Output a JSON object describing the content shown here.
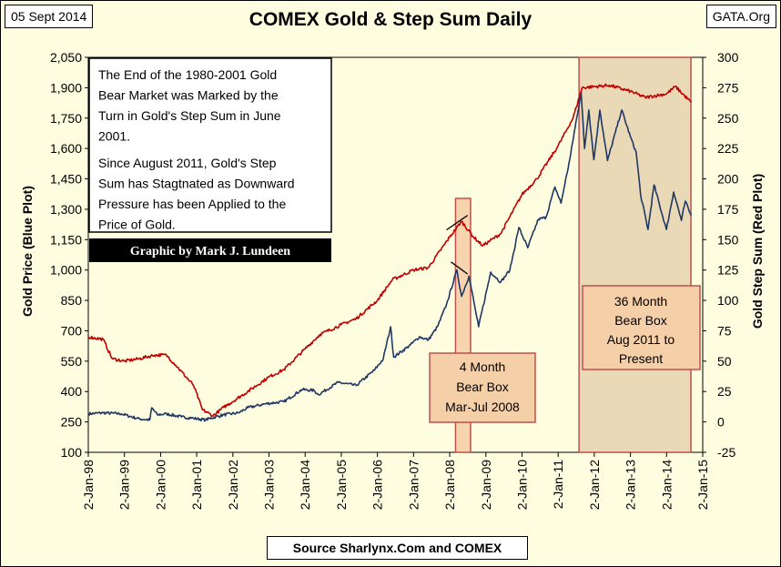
{
  "header": {
    "date": "05 Sept 2014",
    "title": "COMEX Gold & Step Sum Daily",
    "site": "GATA.Org"
  },
  "footer": {
    "source": "Source Sharlynx.Com and COMEX"
  },
  "annotations": {
    "note_paragraph_1": [
      "The End of the 1980-2001 Gold",
      "Bear Market  was Marked by the",
      "Turn in Gold's Step Sum in June",
      "2001."
    ],
    "note_paragraph_2": [
      "Since August 2011, Gold's Step",
      "Sum has Stagtnated as Downward",
      "Pressure has been Applied to the",
      "Price of Gold."
    ],
    "credit": "Graphic by Mark J. Lundeen",
    "box_2008": [
      "4 Month",
      "Bear Box",
      "Mar-Jul 2008"
    ],
    "box_2011": [
      "36 Month",
      "Bear Box",
      "Aug 2011 to",
      "Present"
    ]
  },
  "colors": {
    "gold_price": "#1f3864",
    "step_sum": "#c00000",
    "plot_bg": "#fffde0",
    "bear_box_fill": "#f5cfa8",
    "bear_box_shade": "#e3cca8",
    "bear_box_border": "#c0504d",
    "credit_bg": "#000000",
    "credit_text": "#ffffff"
  },
  "chart_data": {
    "type": "line",
    "title": "COMEX Gold & Step Sum Daily",
    "x_ticks": [
      "2-Jan-98",
      "2-Jan-99",
      "2-Jan-00",
      "2-Jan-01",
      "2-Jan-02",
      "2-Jan-03",
      "2-Jan-04",
      "2-Jan-05",
      "2-Jan-06",
      "2-Jan-07",
      "2-Jan-08",
      "2-Jan-09",
      "2-Jan-10",
      "2-Jan-11",
      "2-Jan-12",
      "2-Jan-13",
      "2-Jan-14",
      "2-Jan-15"
    ],
    "x_range": [
      "1998-01-02",
      "2015-01-02"
    ],
    "y_left": {
      "label": "Gold Price   (Blue Plot)",
      "range": [
        100,
        2050
      ],
      "ticks": [
        100,
        250,
        400,
        550,
        700,
        850,
        1000,
        1150,
        1300,
        1450,
        1600,
        1750,
        1900,
        2050
      ]
    },
    "y_right": {
      "label": "Gold Step Sum   (Red Plot)",
      "range": [
        -25,
        300
      ],
      "ticks": [
        -25,
        0,
        25,
        50,
        75,
        100,
        125,
        150,
        175,
        200,
        225,
        250,
        275,
        300
      ]
    },
    "grid": false,
    "series": [
      {
        "name": "Gold Price",
        "axis": "left",
        "points": [
          [
            "1998-01-02",
            290
          ],
          [
            "1998-06-01",
            295
          ],
          [
            "1998-12-01",
            290
          ],
          [
            "1999-06-01",
            265
          ],
          [
            "1999-09-15",
            260
          ],
          [
            "1999-10-05",
            320
          ],
          [
            "1999-12-01",
            285
          ],
          [
            "2000-03-01",
            290
          ],
          [
            "2000-08-01",
            275
          ],
          [
            "2000-12-01",
            268
          ],
          [
            "2001-04-01",
            260
          ],
          [
            "2001-06-01",
            270
          ],
          [
            "2001-10-01",
            285
          ],
          [
            "2002-03-01",
            295
          ],
          [
            "2002-06-01",
            320
          ],
          [
            "2002-12-01",
            340
          ],
          [
            "2003-03-01",
            345
          ],
          [
            "2003-06-01",
            350
          ],
          [
            "2003-12-01",
            410
          ],
          [
            "2004-04-01",
            405
          ],
          [
            "2004-05-15",
            385
          ],
          [
            "2004-12-01",
            445
          ],
          [
            "2005-06-01",
            430
          ],
          [
            "2005-12-01",
            505
          ],
          [
            "2006-03-01",
            560
          ],
          [
            "2006-05-15",
            720
          ],
          [
            "2006-06-15",
            570
          ],
          [
            "2006-12-01",
            630
          ],
          [
            "2007-03-01",
            670
          ],
          [
            "2007-06-01",
            655
          ],
          [
            "2007-09-01",
            720
          ],
          [
            "2007-12-01",
            830
          ],
          [
            "2008-03-15",
            1000
          ],
          [
            "2008-05-01",
            870
          ],
          [
            "2008-07-15",
            970
          ],
          [
            "2008-10-20",
            720
          ],
          [
            "2009-02-20",
            990
          ],
          [
            "2009-06-01",
            940
          ],
          [
            "2009-09-01",
            1000
          ],
          [
            "2009-12-01",
            1210
          ],
          [
            "2010-03-01",
            1110
          ],
          [
            "2010-06-15",
            1250
          ],
          [
            "2010-09-01",
            1260
          ],
          [
            "2010-12-01",
            1410
          ],
          [
            "2011-01-31",
            1330
          ],
          [
            "2011-05-01",
            1550
          ],
          [
            "2011-08-22",
            1880
          ],
          [
            "2011-09-26",
            1600
          ],
          [
            "2011-11-08",
            1790
          ],
          [
            "2011-12-29",
            1545
          ],
          [
            "2012-02-28",
            1790
          ],
          [
            "2012-05-15",
            1540
          ],
          [
            "2012-10-05",
            1790
          ],
          [
            "2012-12-31",
            1660
          ],
          [
            "2013-03-01",
            1580
          ],
          [
            "2013-04-15",
            1370
          ],
          [
            "2013-06-28",
            1200
          ],
          [
            "2013-08-28",
            1420
          ],
          [
            "2013-12-31",
            1200
          ],
          [
            "2014-03-15",
            1385
          ],
          [
            "2014-06-01",
            1245
          ],
          [
            "2014-07-10",
            1340
          ],
          [
            "2014-09-05",
            1270
          ]
        ]
      },
      {
        "name": "Step Sum",
        "axis": "right",
        "points": [
          [
            "1998-01-02",
            70
          ],
          [
            "1998-06-01",
            68
          ],
          [
            "1998-09-01",
            52
          ],
          [
            "1999-01-01",
            50
          ],
          [
            "1999-06-01",
            52
          ],
          [
            "1999-11-01",
            55
          ],
          [
            "2000-03-01",
            55
          ],
          [
            "2000-06-01",
            47
          ],
          [
            "2000-12-01",
            30
          ],
          [
            "2001-03-01",
            10
          ],
          [
            "2001-06-15",
            5
          ],
          [
            "2001-10-01",
            12
          ],
          [
            "2002-06-01",
            25
          ],
          [
            "2003-01-01",
            37
          ],
          [
            "2003-06-01",
            43
          ],
          [
            "2004-01-01",
            60
          ],
          [
            "2004-06-01",
            72
          ],
          [
            "2005-01-01",
            80
          ],
          [
            "2005-06-01",
            85
          ],
          [
            "2006-01-01",
            100
          ],
          [
            "2006-06-01",
            117
          ],
          [
            "2007-01-01",
            125
          ],
          [
            "2007-06-01",
            127
          ],
          [
            "2008-01-01",
            152
          ],
          [
            "2008-05-01",
            165
          ],
          [
            "2008-09-01",
            152
          ],
          [
            "2008-12-01",
            145
          ],
          [
            "2009-06-01",
            155
          ],
          [
            "2010-01-01",
            187
          ],
          [
            "2010-06-01",
            200
          ],
          [
            "2011-01-01",
            227
          ],
          [
            "2011-06-01",
            250
          ],
          [
            "2011-09-01",
            275
          ],
          [
            "2012-06-01",
            277
          ],
          [
            "2013-01-01",
            272
          ],
          [
            "2013-06-01",
            267
          ],
          [
            "2014-01-01",
            270
          ],
          [
            "2014-04-01",
            276
          ],
          [
            "2014-09-05",
            263
          ]
        ]
      }
    ],
    "regions": [
      {
        "name": "4 Month Bear Box",
        "start": "2008-03-01",
        "end": "2008-07-31"
      },
      {
        "name": "36 Month Bear Box",
        "start": "2011-08-01",
        "end": "2014-09-05"
      }
    ]
  }
}
